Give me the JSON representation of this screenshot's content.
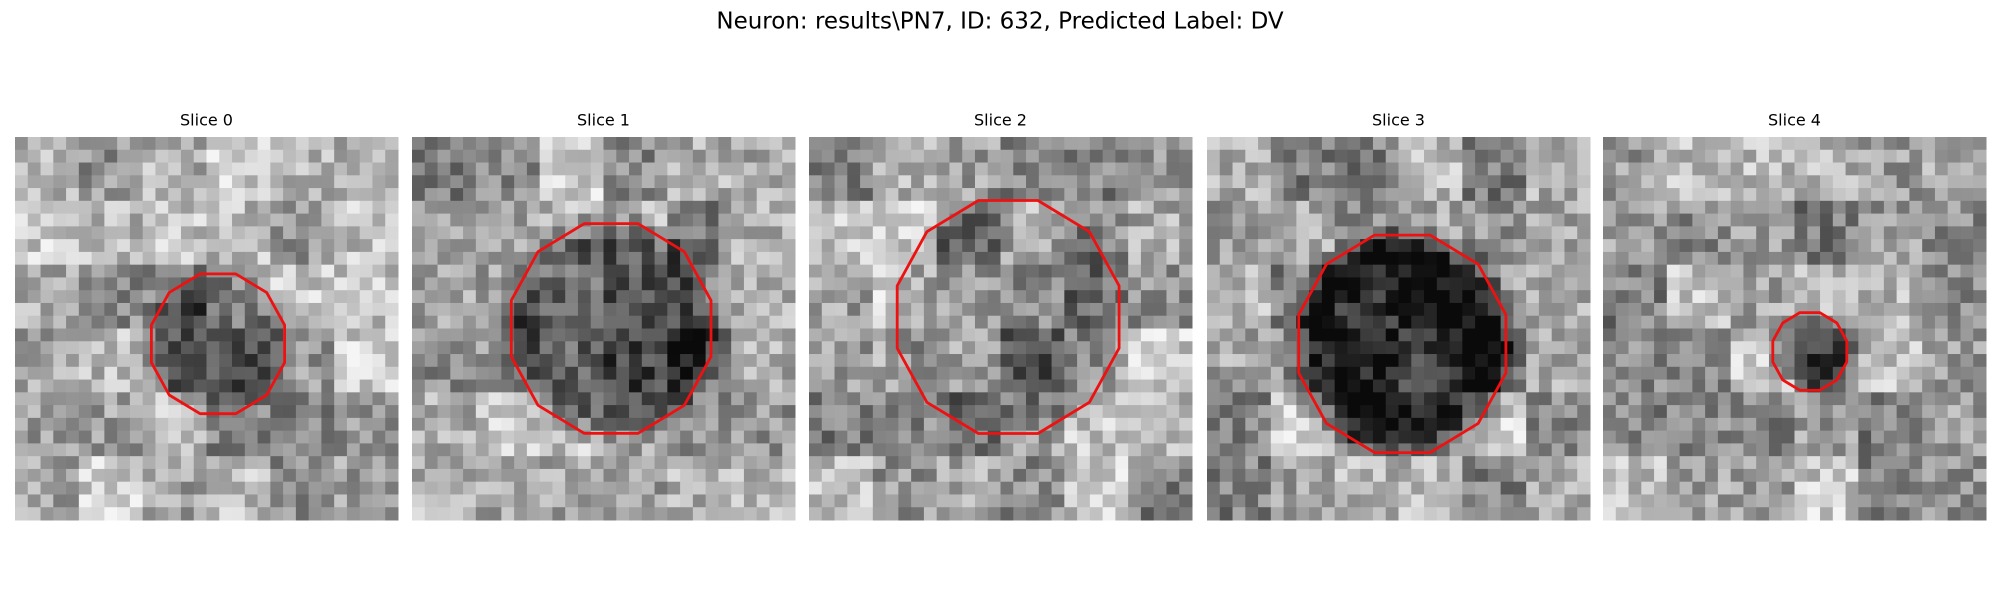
{
  "title": "Neuron: results\\PN7, ID: 632, Predicted Label: DV",
  "panels": [
    {
      "title": "Slice 0"
    },
    {
      "title": "Slice 1"
    },
    {
      "title": "Slice 2"
    },
    {
      "title": "Slice 3"
    },
    {
      "title": "Slice 4"
    }
  ]
}
